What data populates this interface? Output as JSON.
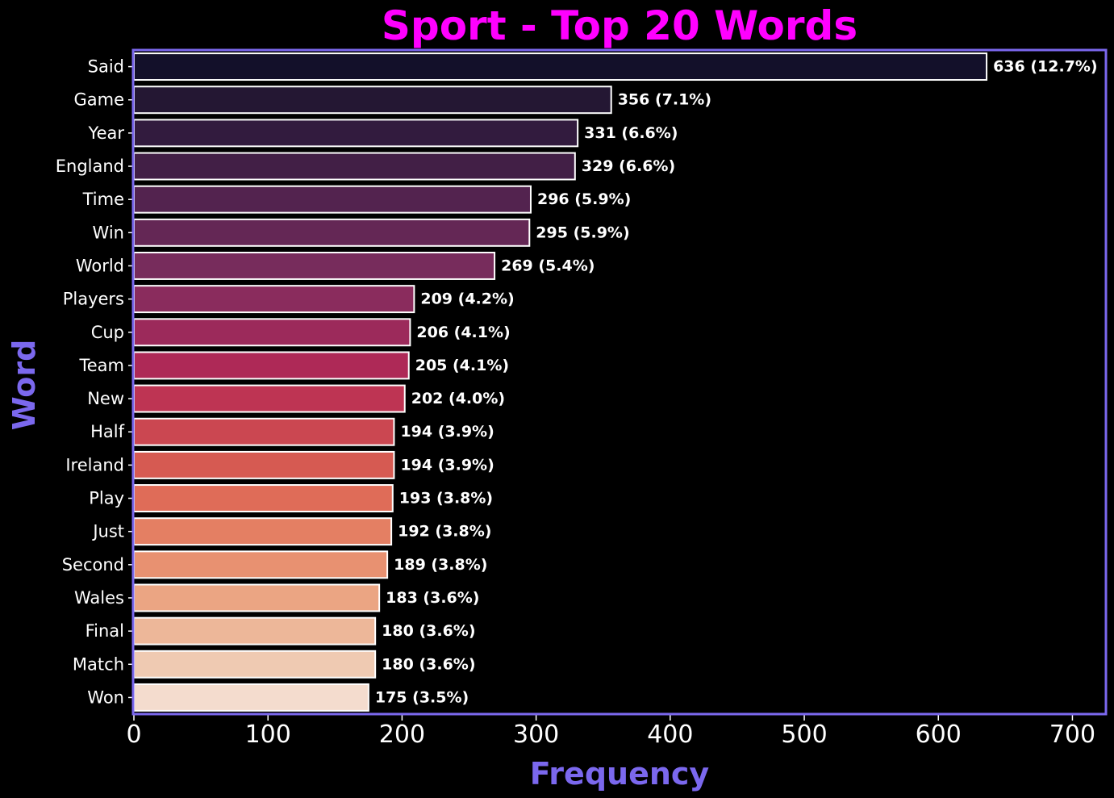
{
  "chart_data": {
    "type": "bar",
    "orientation": "horizontal",
    "title": "Sport - Top 20 Words",
    "xlabel": "Frequency",
    "ylabel": "Word",
    "xlim": [
      0,
      725
    ],
    "xticks": [
      0,
      100,
      200,
      300,
      400,
      500,
      600,
      700
    ],
    "grid": false,
    "categories": [
      "Said",
      "Game",
      "Year",
      "England",
      "Time",
      "Win",
      "World",
      "Players",
      "Cup",
      "Team",
      "New",
      "Half",
      "Ireland",
      "Play",
      "Just",
      "Second",
      "Wales",
      "Final",
      "Match",
      "Won"
    ],
    "values": [
      636,
      356,
      331,
      329,
      296,
      295,
      269,
      209,
      206,
      205,
      202,
      194,
      194,
      193,
      192,
      189,
      183,
      180,
      180,
      175
    ],
    "value_labels": [
      "636 (12.7%)",
      "356 (7.1%)",
      "331 (6.6%)",
      "329 (6.6%)",
      "296 (5.9%)",
      "295 (5.9%)",
      "269 (5.4%)",
      "209 (4.2%)",
      "206 (4.1%)",
      "205 (4.1%)",
      "202 (4.0%)",
      "194 (3.9%)",
      "194 (3.9%)",
      "193 (3.8%)",
      "192 (3.8%)",
      "189 (3.8%)",
      "183 (3.6%)",
      "180 (3.6%)",
      "180 (3.6%)",
      "175 (3.5%)"
    ],
    "colors": {
      "background": "#000000",
      "title": "#ff00ff",
      "axis_label": "#7b68ee",
      "frame": "#7b68ee",
      "text": "#ffffff",
      "bar_edge": "#ffffff",
      "bars": [
        "#13102a",
        "#241733",
        "#321b3e",
        "#421f46",
        "#53234f",
        "#642755",
        "#772c5c",
        "#8a2c5d",
        "#9c2a5b",
        "#ae2957",
        "#be3453",
        "#cb4751",
        "#d65a52",
        "#df6c58",
        "#e47f63",
        "#e89171",
        "#eba583",
        "#edb799",
        "#efcab2",
        "#f4dcce"
      ]
    }
  }
}
